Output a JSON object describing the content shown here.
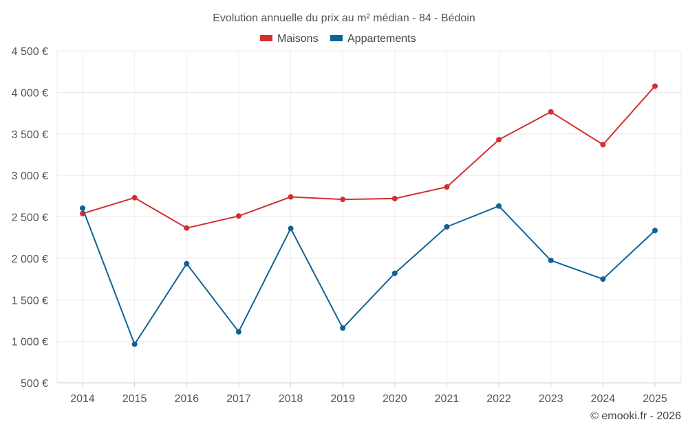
{
  "chart_data": {
    "type": "line",
    "title": "Evolution annuelle du prix au m² médian - 84 - Bédoin",
    "categories": [
      "2014",
      "2015",
      "2016",
      "2017",
      "2018",
      "2019",
      "2020",
      "2021",
      "2022",
      "2023",
      "2024",
      "2025"
    ],
    "series": [
      {
        "name": "Maisons",
        "color": "#d32f2f",
        "values": [
          2540,
          2730,
          2365,
          2510,
          2740,
          2710,
          2720,
          2860,
          3430,
          3765,
          3370,
          4075
        ]
      },
      {
        "name": "Appartements",
        "color": "#0d6394",
        "values": [
          2605,
          965,
          1935,
          1115,
          2360,
          1160,
          1820,
          2380,
          2630,
          1975,
          1750,
          2335
        ]
      }
    ],
    "ylim": [
      500,
      4500
    ],
    "yticks": [
      500,
      1000,
      1500,
      2000,
      2500,
      3000,
      3500,
      4000,
      4500
    ],
    "ytick_labels": [
      "500 €",
      "1 000 €",
      "1 500 €",
      "2 000 €",
      "2 500 €",
      "3 000 €",
      "3 500 €",
      "4 000 €",
      "4 500 €"
    ],
    "grid": true,
    "legend_position": "top-center",
    "xlabel": "",
    "ylabel": ""
  },
  "footer": {
    "credit": "© emooki.fr - 2026"
  }
}
